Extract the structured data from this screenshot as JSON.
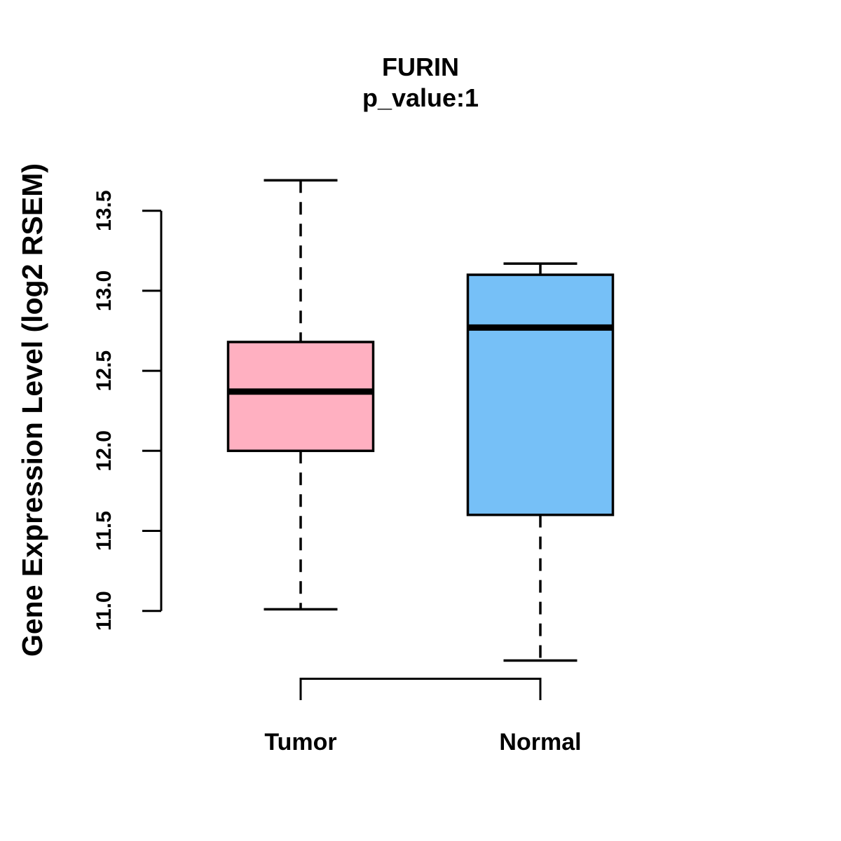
{
  "header": {
    "title": "FURIN",
    "subtitle": "p_value:1"
  },
  "chart_data": {
    "type": "boxplot",
    "title": "FURIN",
    "subtitle": "p_value:1",
    "xlabel": "",
    "ylabel": "Gene Expression Level (log2 RSEM)",
    "categories": [
      "Tumor",
      "Normal"
    ],
    "yticks": [
      11.0,
      11.5,
      12.0,
      12.5,
      13.0,
      13.5
    ],
    "ytick_labels": [
      "11.0",
      "11.5",
      "12.0",
      "12.5",
      "13.0",
      "13.5"
    ],
    "ylim": [
      10.55,
      13.75
    ],
    "grid": false,
    "legend": null,
    "whisker_style": "dashed",
    "series": [
      {
        "name": "Tumor",
        "min": 11.01,
        "q1": 12.0,
        "median": 12.37,
        "q3": 12.68,
        "max": 13.69,
        "fill": "#FFB0C1"
      },
      {
        "name": "Normal",
        "min": 10.69,
        "q1": 11.6,
        "median": 12.77,
        "q3": 13.1,
        "max": 13.17,
        "fill": "#76C0F7"
      }
    ]
  },
  "colors": {
    "tumor_fill": "#FFB0C1",
    "normal_fill": "#76C0F7",
    "stroke": "#000000",
    "background": "#FFFFFF"
  }
}
